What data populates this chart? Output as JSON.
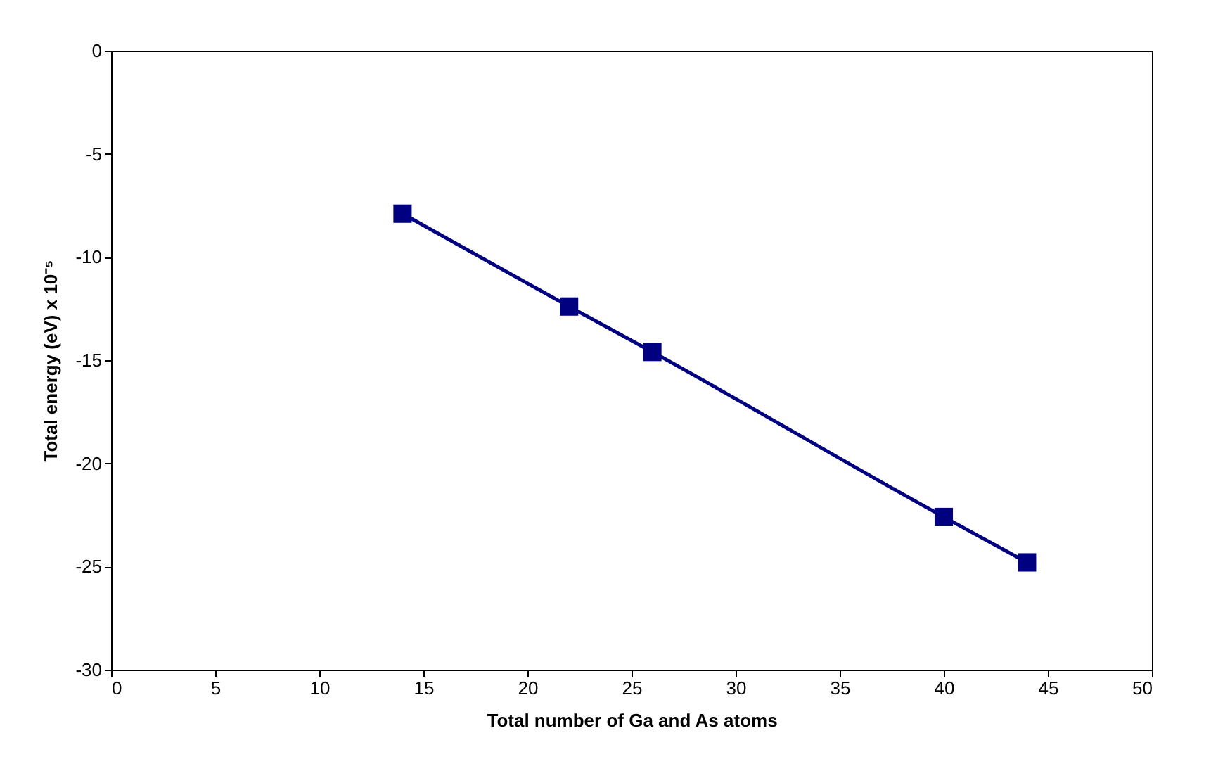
{
  "chart_data": {
    "type": "line",
    "xlabel": "Total number of Ga and As atoms",
    "ylabel": "Total energy (eV) x 10⁻⁵",
    "x": [
      14,
      22,
      26,
      40,
      44
    ],
    "series": [
      {
        "color": "#000080",
        "values": [
          -7.9,
          -12.4,
          -14.6,
          -22.6,
          -24.8
        ]
      }
    ],
    "xlim": [
      0,
      50
    ],
    "xticks": [
      0,
      5,
      10,
      15,
      20,
      25,
      30,
      35,
      40,
      45,
      50
    ],
    "ylim": [
      -30,
      0
    ],
    "yticks": [
      -30,
      -25,
      -20,
      -15,
      -10,
      -5,
      0
    ],
    "grid": false,
    "marker": "square",
    "line_style": "solid"
  }
}
